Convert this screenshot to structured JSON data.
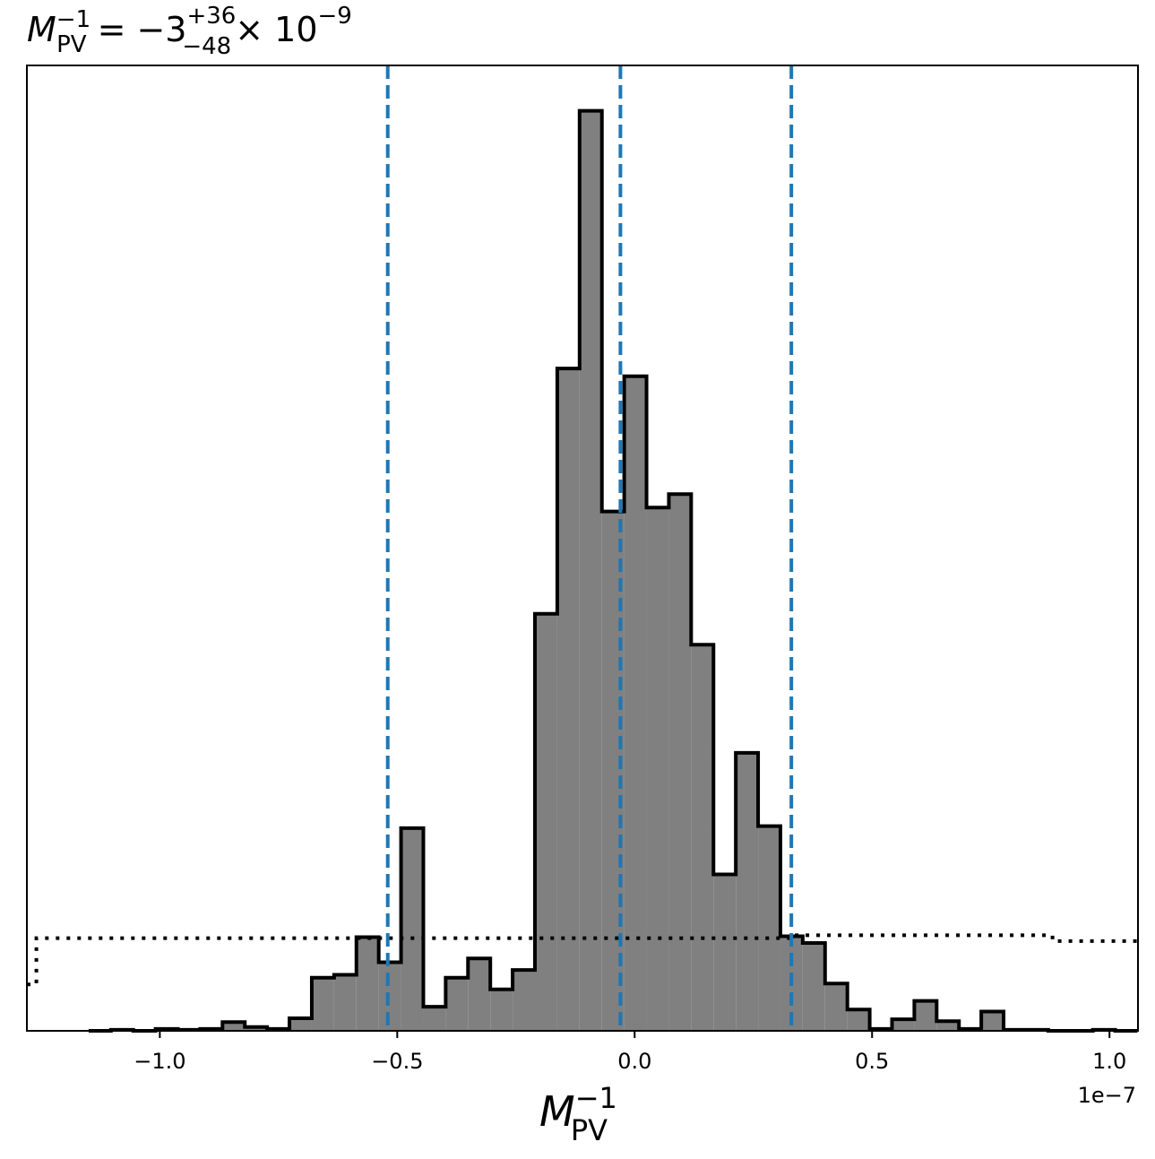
{
  "chart_data": {
    "type": "bar",
    "title": {
      "lhs": "M",
      "lhs_sub": "PV",
      "lhs_sup": "−1",
      "eq": "=",
      "value": "−3",
      "err_plus": "+36",
      "err_minus": "−48",
      "times": "× 10",
      "exponent": "−9"
    },
    "xlabel": {
      "main": "M",
      "sub": "PV",
      "sup": "−1"
    },
    "ylabel": "",
    "offset_text": "1e−7",
    "xlim": [
      -1.28,
      1.06
    ],
    "ylim": [
      0,
      100
    ],
    "xticks": [
      {
        "value": -1.0,
        "label": "−1.0"
      },
      {
        "value": -0.5,
        "label": "−0.5"
      },
      {
        "value": 0.0,
        "label": "0.0"
      },
      {
        "value": 0.5,
        "label": "0.5"
      },
      {
        "value": 1.0,
        "label": "1.0"
      }
    ],
    "bin_edges": [
      -1.15,
      -1.103,
      -1.056,
      -1.009,
      -0.962,
      -0.915,
      -0.868,
      -0.821,
      -0.774,
      -0.727,
      -0.68,
      -0.633,
      -0.586,
      -0.539,
      -0.492,
      -0.445,
      -0.398,
      -0.351,
      -0.304,
      -0.257,
      -0.21,
      -0.163,
      -0.116,
      -0.069,
      -0.022,
      0.025,
      0.072,
      0.119,
      0.166,
      0.213,
      0.26,
      0.307,
      0.354,
      0.401,
      0.448,
      0.495,
      0.542,
      0.589,
      0.636,
      0.683,
      0.73,
      0.777,
      0.824,
      0.871,
      0.918,
      0.965,
      1.012,
      1.059
    ],
    "counts": [
      0,
      0.1,
      0,
      0.2,
      0.1,
      0.2,
      0.9,
      0.4,
      0.2,
      1.3,
      5.5,
      5.8,
      9.7,
      7.1,
      21.0,
      2.5,
      5.5,
      7.5,
      4.3,
      6.3,
      43.2,
      68.6,
      95.3,
      53.8,
      67.8,
      54.2,
      55.6,
      40.0,
      16.2,
      28.8,
      21.2,
      9.8,
      9.1,
      4.9,
      2.2,
      0.2,
      1.2,
      3.1,
      1.0,
      0.2,
      2.0,
      0.1,
      0.1,
      0,
      0,
      0.1,
      0
    ],
    "quantile_lines": [
      -0.52,
      -0.03,
      0.33
    ],
    "prior": {
      "x": [
        -1.28,
        -1.26,
        -1.26,
        0.33,
        0.33,
        0.88,
        0.88,
        1.06
      ],
      "y": [
        4.8,
        4.8,
        9.6,
        9.6,
        9.9,
        9.9,
        9.3,
        9.3
      ]
    },
    "colors": {
      "hist_fill": "#808080",
      "hist_edge": "#000000",
      "quantile": "#1f77b4",
      "prior": "#000000"
    },
    "grid": false,
    "legend": "none"
  }
}
